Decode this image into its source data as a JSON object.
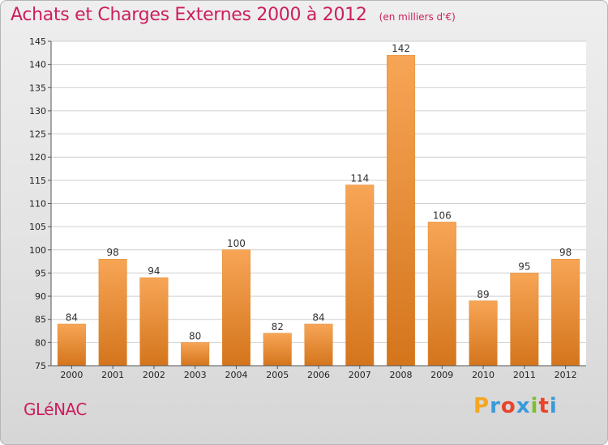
{
  "chart_data": {
    "type": "bar",
    "title": "Achats et Charges Externes 2000 à 2012",
    "subtitle": "(en milliers d'€)",
    "categories": [
      "2000",
      "2001",
      "2002",
      "2003",
      "2004",
      "2005",
      "2006",
      "2007",
      "2008",
      "2009",
      "2010",
      "2011",
      "2012"
    ],
    "values": [
      84,
      98,
      94,
      80,
      100,
      82,
      84,
      114,
      142,
      106,
      89,
      95,
      98
    ],
    "ylim": [
      75,
      145
    ],
    "yticks": [
      75,
      80,
      85,
      90,
      95,
      100,
      105,
      110,
      115,
      120,
      125,
      130,
      135,
      140,
      145
    ],
    "grid": true,
    "bar_color": "#f0963c",
    "bar_color_dark": "#d97a1e"
  },
  "commune": "GLéNAC",
  "logo": {
    "letters": [
      "P",
      "r",
      "o",
      "x",
      "i",
      "t",
      "i"
    ],
    "colors": [
      "#f5a623",
      "#3a9ad9",
      "#e8432b",
      "#3a9ad9",
      "#7cbf2f",
      "#e8432b",
      "#3a9ad9"
    ]
  },
  "accent_color": "#cc1e5e"
}
